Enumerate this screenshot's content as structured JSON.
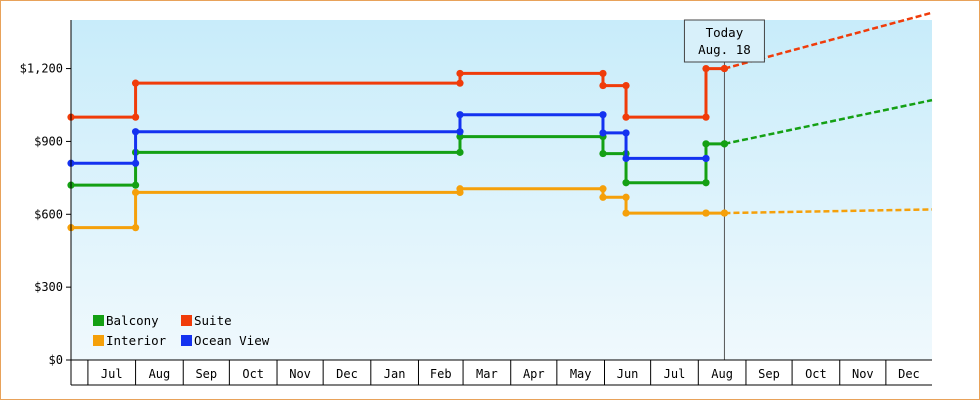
{
  "chart_data": {
    "type": "line",
    "step": true,
    "ylim": [
      0,
      1400
    ],
    "y_ticks": [
      {
        "value": 0,
        "label": "$0"
      },
      {
        "value": 300,
        "label": "$300"
      },
      {
        "value": 600,
        "label": "$600"
      },
      {
        "value": 900,
        "label": "$900"
      },
      {
        "value": 1200,
        "label": "$1,200"
      }
    ],
    "x_range": [
      "2015-06-20",
      "2016-12-31"
    ],
    "x_months": [
      {
        "label": "Jul",
        "start": "2015-07-01",
        "end": "2015-08-01"
      },
      {
        "label": "Aug",
        "start": "2015-08-01",
        "end": "2015-09-01"
      },
      {
        "label": "Sep",
        "start": "2015-09-01",
        "end": "2015-10-01"
      },
      {
        "label": "Oct",
        "start": "2015-10-01",
        "end": "2015-11-01"
      },
      {
        "label": "Nov",
        "start": "2015-11-01",
        "end": "2015-12-01"
      },
      {
        "label": "Dec",
        "start": "2015-12-01",
        "end": "2016-01-01"
      },
      {
        "label": "Jan",
        "start": "2016-01-01",
        "end": "2016-02-01"
      },
      {
        "label": "Feb",
        "start": "2016-02-01",
        "end": "2016-03-01"
      },
      {
        "label": "Mar",
        "start": "2016-03-01",
        "end": "2016-04-01"
      },
      {
        "label": "Apr",
        "start": "2016-04-01",
        "end": "2016-05-01"
      },
      {
        "label": "May",
        "start": "2016-05-01",
        "end": "2016-06-01"
      },
      {
        "label": "Jun",
        "start": "2016-06-01",
        "end": "2016-07-01"
      },
      {
        "label": "Jul",
        "start": "2016-07-01",
        "end": "2016-08-01"
      },
      {
        "label": "Aug",
        "start": "2016-08-01",
        "end": "2016-09-01"
      },
      {
        "label": "Sep",
        "start": "2016-09-01",
        "end": "2016-10-01"
      },
      {
        "label": "Oct",
        "start": "2016-10-01",
        "end": "2016-11-01"
      },
      {
        "label": "Nov",
        "start": "2016-11-01",
        "end": "2016-12-01"
      },
      {
        "label": "Dec",
        "start": "2016-12-01",
        "end": "2016-12-31"
      }
    ],
    "today": {
      "date": "2016-08-18",
      "line1": "Today",
      "line2": "Aug. 18"
    },
    "series": [
      {
        "name": "Suite",
        "color": "#f03c0a",
        "points": [
          {
            "x": "2015-06-20",
            "y": 1000
          },
          {
            "x": "2015-08-01",
            "y": 1140
          },
          {
            "x": "2016-02-28",
            "y": 1180
          },
          {
            "x": "2016-05-31",
            "y": 1130
          },
          {
            "x": "2016-06-15",
            "y": 1000
          },
          {
            "x": "2016-08-06",
            "y": 1200
          },
          {
            "x": "2016-08-18",
            "y": 1200
          }
        ],
        "forecast": [
          {
            "x": "2016-08-18",
            "y": 1200
          },
          {
            "x": "2016-12-31",
            "y": 1430
          }
        ]
      },
      {
        "name": "Ocean View",
        "color": "#1432f0",
        "points": [
          {
            "x": "2015-06-20",
            "y": 810
          },
          {
            "x": "2015-08-01",
            "y": 940
          },
          {
            "x": "2016-02-28",
            "y": 1010
          },
          {
            "x": "2016-05-31",
            "y": 935
          },
          {
            "x": "2016-06-15",
            "y": 830
          },
          {
            "x": "2016-08-06",
            "y": 830
          }
        ]
      },
      {
        "name": "Balcony",
        "color": "#14a014",
        "points": [
          {
            "x": "2015-06-20",
            "y": 720
          },
          {
            "x": "2015-08-01",
            "y": 855
          },
          {
            "x": "2016-02-28",
            "y": 920
          },
          {
            "x": "2016-05-31",
            "y": 850
          },
          {
            "x": "2016-06-15",
            "y": 730
          },
          {
            "x": "2016-08-06",
            "y": 890
          },
          {
            "x": "2016-08-18",
            "y": 890
          }
        ],
        "forecast": [
          {
            "x": "2016-08-18",
            "y": 890
          },
          {
            "x": "2016-12-31",
            "y": 1070
          }
        ]
      },
      {
        "name": "Interior",
        "color": "#f5a00a",
        "points": [
          {
            "x": "2015-06-20",
            "y": 545
          },
          {
            "x": "2015-08-01",
            "y": 690
          },
          {
            "x": "2016-02-28",
            "y": 705
          },
          {
            "x": "2016-05-31",
            "y": 670
          },
          {
            "x": "2016-06-15",
            "y": 605
          },
          {
            "x": "2016-08-06",
            "y": 605
          },
          {
            "x": "2016-08-18",
            "y": 605
          }
        ],
        "forecast": [
          {
            "x": "2016-08-18",
            "y": 605
          },
          {
            "x": "2016-12-31",
            "y": 620
          }
        ]
      }
    ],
    "legend": {
      "placement": "bottom-left",
      "rows": [
        [
          "Balcony",
          "Suite"
        ],
        [
          "Interior",
          "Ocean View"
        ]
      ]
    },
    "grid": false,
    "background": {
      "top": "#c8ecfa",
      "bottom": "#f0f9fd"
    }
  }
}
